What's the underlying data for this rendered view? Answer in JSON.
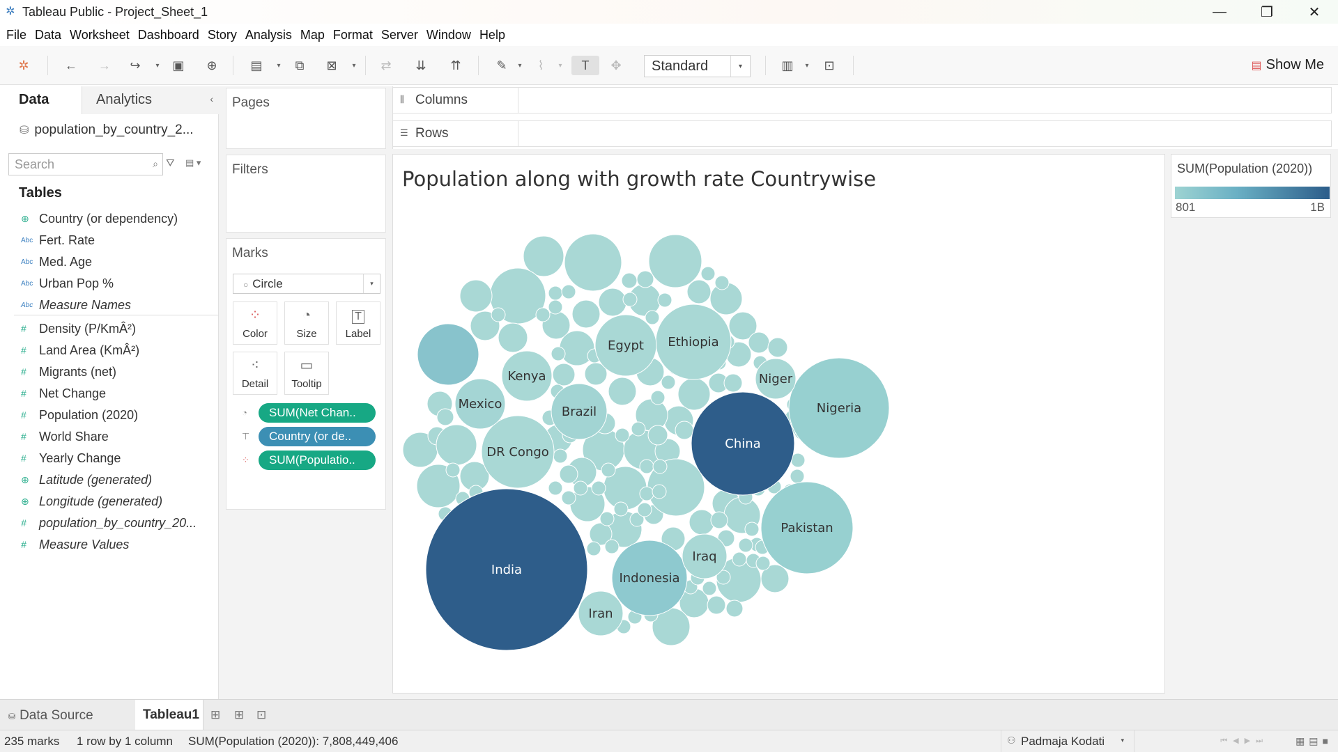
{
  "window": {
    "title": "Tableau Public - Project_Sheet_1",
    "app_icon": "tableau-logo-icon"
  },
  "menu": [
    "File",
    "Data",
    "Worksheet",
    "Dashboard",
    "Story",
    "Analysis",
    "Map",
    "Format",
    "Server",
    "Window",
    "Help"
  ],
  "toolbar": {
    "fit_mode": "Standard",
    "show_me_label": "Show Me"
  },
  "data_pane": {
    "tab_data": "Data",
    "tab_analytics": "Analytics",
    "datasource": "population_by_country_2...",
    "search_placeholder": "Search",
    "tables_heading": "Tables",
    "dimensions": [
      {
        "name": "Country (or dependency)",
        "type": "geo"
      },
      {
        "name": "Fert. Rate",
        "type": "Abc"
      },
      {
        "name": "Med. Age",
        "type": "Abc"
      },
      {
        "name": "Urban Pop %",
        "type": "Abc"
      },
      {
        "name": "Measure Names",
        "type": "Abc"
      }
    ],
    "measures": [
      {
        "name": "Density (P/KmÂ²)",
        "type": "#"
      },
      {
        "name": "Land Area (KmÂ²)",
        "type": "#"
      },
      {
        "name": "Migrants (net)",
        "type": "#"
      },
      {
        "name": "Net Change",
        "type": "#"
      },
      {
        "name": "Population (2020)",
        "type": "#"
      },
      {
        "name": "World Share",
        "type": "#"
      },
      {
        "name": "Yearly Change",
        "type": "#"
      },
      {
        "name": "Latitude (generated)",
        "type": "geo"
      },
      {
        "name": "Longitude (generated)",
        "type": "geo"
      },
      {
        "name": "population_by_country_20...",
        "type": "#"
      },
      {
        "name": "Measure Values",
        "type": "#"
      }
    ]
  },
  "cards": {
    "pages": "Pages",
    "filters": "Filters",
    "marks": "Marks",
    "mark_type": "Circle",
    "mark_buttons": [
      "Color",
      "Size",
      "Label",
      "Detail",
      "Tooltip"
    ],
    "pills": [
      "SUM(Net Chan..",
      "Country (or de..",
      "SUM(Populatio.."
    ]
  },
  "shelves": {
    "columns": "Columns",
    "rows": "Rows"
  },
  "viz": {
    "title": "Population along with growth rate Countrywise",
    "legend_title": "SUM(Population (2020))",
    "legend_min": "801",
    "legend_max": "1B"
  },
  "colors": {
    "light": "#a9d8d5",
    "mid": "#8fcbcf",
    "dark": "#2e5d8a",
    "accent_green": "#17a884",
    "accent_blue": "#3c8fb4"
  },
  "chart_data": {
    "type": "packed-bubble",
    "size_measure": "SUM(Net Change)",
    "color_measure": "SUM(Population (2020))",
    "label_field": "Country (or dependency)",
    "labeled_bubbles": [
      {
        "label": "India",
        "color": "#2e5d8a"
      },
      {
        "label": "China",
        "color": "#2e5d8a"
      },
      {
        "label": "Nigeria",
        "color": "#97d0d0"
      },
      {
        "label": "Pakistan",
        "color": "#97d0d0"
      },
      {
        "label": "Indonesia",
        "color": "#8ec9cf"
      },
      {
        "label": "Ethiopia",
        "color": "#a9d8d5"
      },
      {
        "label": "DR Congo",
        "color": "#a9d8d5"
      },
      {
        "label": "Egypt",
        "color": "#a9d8d5"
      },
      {
        "label": "Brazil",
        "color": "#a2d4d3"
      },
      {
        "label": "Kenya",
        "color": "#a9d8d5"
      },
      {
        "label": "Mexico",
        "color": "#a4d5d4"
      },
      {
        "label": "Niger",
        "color": "#a9d8d5"
      },
      {
        "label": "Iraq",
        "color": "#a9d8d5"
      },
      {
        "label": "Iran",
        "color": "#a9d8d5"
      }
    ]
  },
  "bottom": {
    "data_source_tab": "Data Source",
    "sheet_tab": "Tableau1"
  },
  "status": {
    "marks": "235 marks",
    "dims": "1 row by 1 column",
    "sum": "SUM(Population (2020)): 7,808,449,406",
    "user": "Padmaja Kodati"
  }
}
